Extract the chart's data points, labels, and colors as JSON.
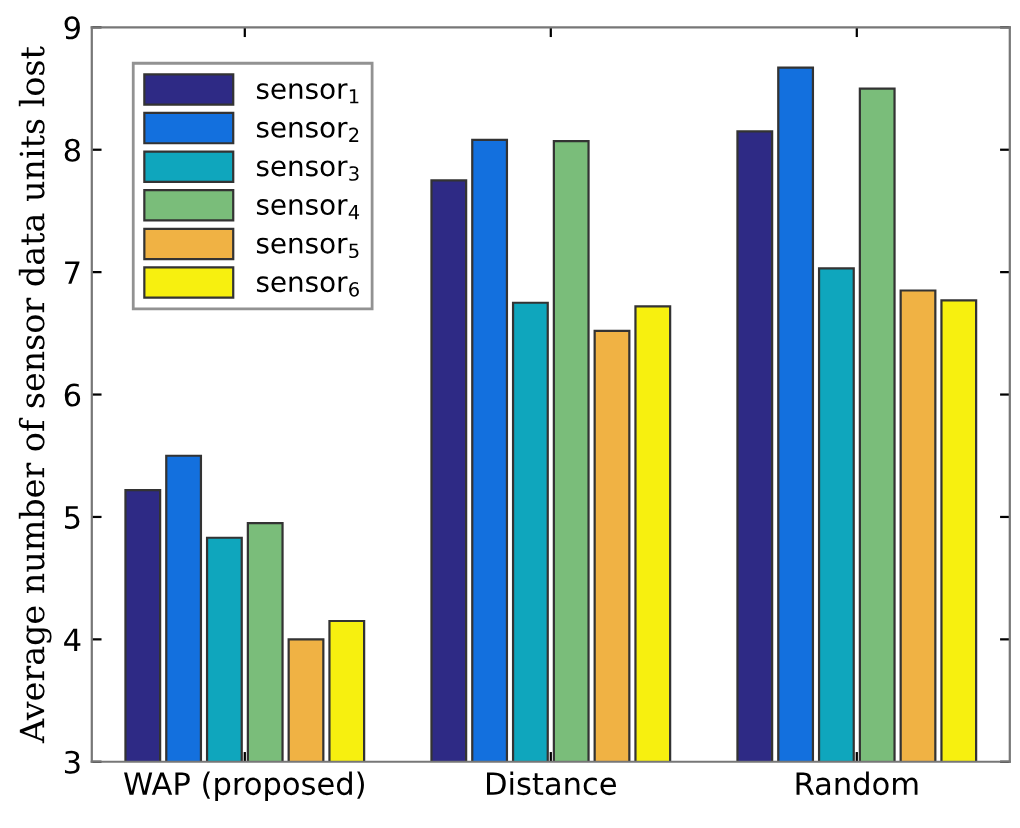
{
  "chart_data": {
    "type": "bar",
    "ylabel": "Average number of sensor data units lost",
    "categories": [
      "WAP (proposed)",
      "Distance",
      "Random"
    ],
    "series": [
      {
        "name": "sensor$_{1}$",
        "color": "#2e2a85",
        "values": [
          5.22,
          7.75,
          8.15
        ]
      },
      {
        "name": "sensor$_{2}$",
        "color": "#1370de",
        "values": [
          5.5,
          8.08,
          8.67
        ]
      },
      {
        "name": "sensor$_{3}$",
        "color": "#0fa6bd",
        "values": [
          4.83,
          6.75,
          7.03
        ]
      },
      {
        "name": "sensor$_{4}$",
        "color": "#7abd7a",
        "values": [
          4.95,
          8.07,
          8.5
        ]
      },
      {
        "name": "sensor$_{5}$",
        "color": "#f0b244",
        "values": [
          4.0,
          6.52,
          6.85
        ]
      },
      {
        "name": "sensor$_{6}$",
        "color": "#f7f00f",
        "values": [
          4.15,
          6.72,
          6.77
        ]
      }
    ],
    "ylim": [
      3,
      9
    ],
    "yticks": [
      3,
      4,
      5,
      6,
      7,
      8,
      9
    ],
    "grid": false,
    "legend": "top left"
  }
}
